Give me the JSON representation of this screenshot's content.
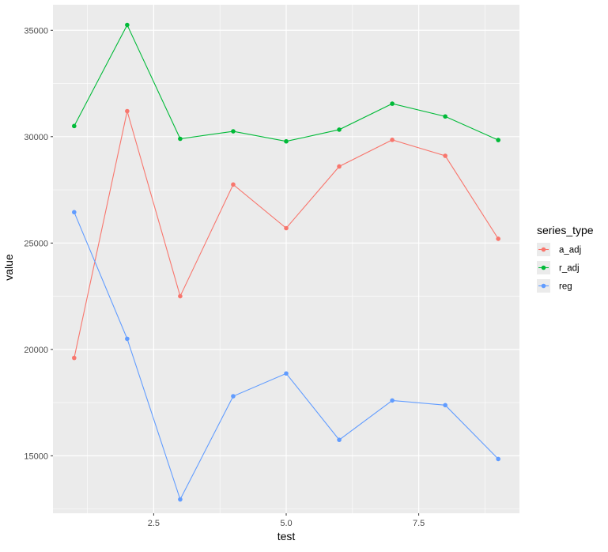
{
  "chart_data": {
    "type": "line",
    "title": "",
    "xlabel": "test",
    "ylabel": "value",
    "xlim": [
      0.6,
      9.4
    ],
    "ylim": [
      12300,
      36200
    ],
    "x_major_ticks": [
      2.5,
      5.0,
      7.5
    ],
    "x_tick_labels": [
      "2.5",
      "5.0",
      "7.5"
    ],
    "x_minor_ticks": [
      1.25,
      3.75,
      6.25,
      8.75
    ],
    "y_major_ticks": [
      15000,
      20000,
      25000,
      30000,
      35000
    ],
    "y_tick_labels": [
      "15000",
      "20000",
      "25000",
      "30000",
      "35000"
    ],
    "y_minor_ticks": [
      12500,
      17500,
      22500,
      27500,
      32500
    ],
    "grid": true,
    "panel_background": "#ebebeb",
    "grid_color": "#ffffff",
    "x": [
      1,
      2,
      3,
      4,
      5,
      6,
      7,
      8,
      9
    ],
    "series": [
      {
        "name": "a_adj",
        "color": "#f8766d",
        "values": [
          19600,
          31200,
          22500,
          27750,
          25700,
          28600,
          29850,
          29100,
          25200
        ]
      },
      {
        "name": "r_adj",
        "color": "#00ba38",
        "values": [
          30500,
          35250,
          29900,
          30250,
          29780,
          30330,
          31550,
          30950,
          29840
        ]
      },
      {
        "name": "reg",
        "color": "#619cff",
        "values": [
          26450,
          20500,
          12950,
          17800,
          18870,
          15750,
          17600,
          17380,
          14850
        ]
      }
    ],
    "legend": {
      "title": "series_type",
      "placement": "right"
    }
  }
}
